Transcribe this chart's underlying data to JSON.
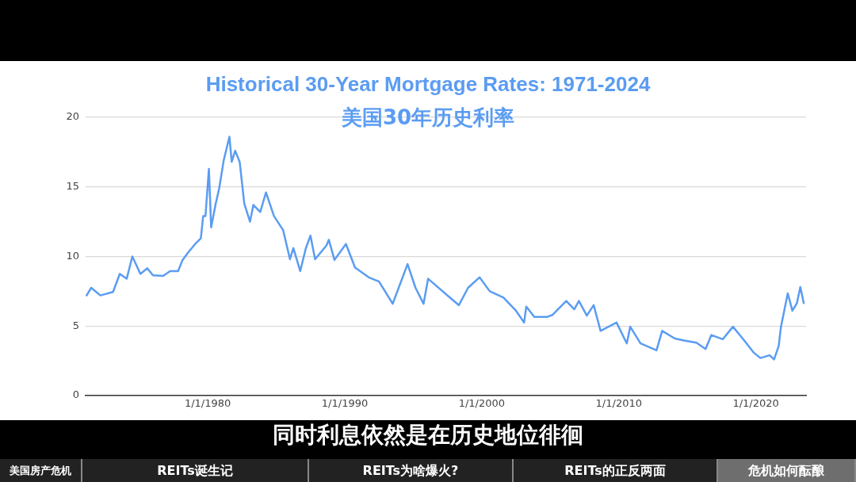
{
  "chart_data": {
    "type": "line",
    "title": "Historical 30-Year Mortgage Rates: 1971-2024",
    "subtitle": "美国30年历史利率",
    "x": [
      "1971-03",
      "1971-07",
      "1972-03",
      "1973-02",
      "1973-08",
      "1974-02",
      "1974-07",
      "1975-02",
      "1975-08",
      "1976-01",
      "1976-10",
      "1977-04",
      "1977-11",
      "1978-03",
      "1978-08",
      "1979-02",
      "1979-07",
      "1979-09",
      "1979-11",
      "1980-02",
      "1980-04",
      "1980-08",
      "1980-11",
      "1981-03",
      "1981-08",
      "1981-10",
      "1982-01",
      "1982-05",
      "1982-09",
      "1983-02",
      "1983-05",
      "1983-11",
      "1984-04",
      "1984-11",
      "1985-07",
      "1986-01",
      "1986-04",
      "1986-10",
      "1987-03",
      "1987-07",
      "1987-11",
      "1988-09",
      "1988-11",
      "1989-04",
      "1990-02",
      "1990-10",
      "1991-10",
      "1992-07",
      "1993-07",
      "1994-08",
      "1995-03",
      "1995-10",
      "1996-02",
      "1996-09",
      "1997-09",
      "1998-05",
      "1999-01",
      "1999-11",
      "2000-08",
      "2001-08",
      "2002-07",
      "2003-02",
      "2003-04",
      "2003-11",
      "2004-10",
      "2005-03",
      "2006-03",
      "2006-10",
      "2007-02",
      "2007-09",
      "2008-03",
      "2008-09",
      "2009-11",
      "2010-08",
      "2010-11",
      "2011-08",
      "2012-10",
      "2013-03",
      "2014-02",
      "2014-11",
      "2015-09",
      "2016-05",
      "2016-10",
      "2017-08",
      "2018-05",
      "2019-02",
      "2019-11",
      "2020-05",
      "2021-01",
      "2021-05",
      "2021-09",
      "2021-11",
      "2022-05",
      "2022-09",
      "2023-01",
      "2023-04",
      "2023-07"
    ],
    "series": [
      {
        "color": "#5b9cf2",
        "values": [
          7.2,
          7.75,
          7.2,
          7.45,
          8.75,
          8.4,
          10.0,
          8.75,
          9.15,
          8.65,
          8.6,
          8.95,
          8.95,
          9.75,
          10.3,
          10.9,
          11.3,
          12.9,
          12.9,
          16.3,
          12.1,
          13.8,
          14.9,
          16.9,
          18.6,
          16.8,
          17.6,
          16.8,
          13.8,
          12.5,
          13.7,
          13.2,
          14.6,
          12.9,
          11.9,
          9.8,
          10.6,
          8.95,
          10.6,
          11.5,
          9.8,
          10.8,
          11.2,
          9.75,
          10.9,
          9.2,
          8.5,
          8.2,
          6.6,
          9.45,
          7.75,
          6.6,
          8.4,
          7.9,
          7.05,
          6.5,
          7.75,
          8.5,
          7.5,
          7.05,
          6.1,
          5.25,
          6.4,
          5.65,
          5.65,
          5.8,
          6.8,
          6.2,
          6.8,
          5.75,
          6.5,
          4.65,
          5.25,
          3.75,
          4.95,
          3.75,
          3.25,
          4.65,
          4.1,
          3.95,
          3.8,
          3.35,
          4.35,
          4.05,
          4.95,
          4.05,
          3.1,
          2.7,
          2.9,
          2.6,
          3.55,
          4.95,
          7.35,
          6.1,
          6.65,
          7.8,
          6.65
        ]
      }
    ],
    "xlim": [
      "1971-02",
      "2023-09"
    ],
    "xticks": [
      {
        "value": "1980-01-01",
        "label": "1/1/1980"
      },
      {
        "value": "1990-01-01",
        "label": "1/1/1990"
      },
      {
        "value": "2000-01-01",
        "label": "1/1/2000"
      },
      {
        "value": "2010-01-01",
        "label": "1/1/2010"
      },
      {
        "value": "2020-01-01",
        "label": "1/1/2020"
      }
    ],
    "ylim": [
      0,
      20
    ],
    "yticks": [
      0,
      5,
      10,
      15,
      20
    ],
    "grid": "y",
    "marker": "none",
    "line_style": "solid",
    "legend": false,
    "annotations": [
      "同时利息依然是在历史地位徘徊",
      "美国房产危机",
      "REITs诞生记",
      "REITs为啥爆火?",
      "REITs的正反两面",
      "危机如何酝酿"
    ]
  }
}
